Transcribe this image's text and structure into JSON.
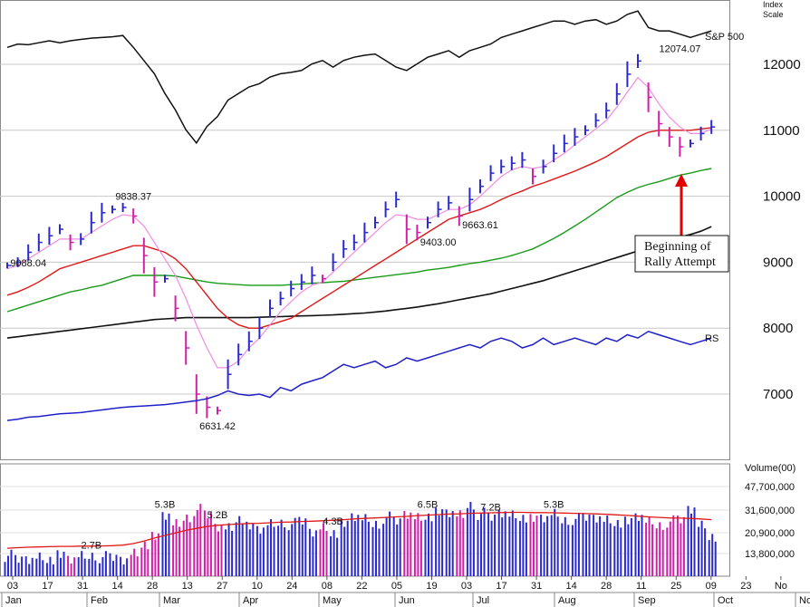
{
  "chart_data": {
    "type": "line",
    "title": "",
    "index_label": "S&P 500",
    "scale_label_1": "Index",
    "scale_label_2": "Scale",
    "rs_label": "RS",
    "volume_label": "Volume(00)",
    "y_ticks": [
      7000,
      8000,
      9000,
      10000,
      11000,
      12000
    ],
    "ylim": [
      6300,
      13000
    ],
    "volume_ticks": [
      "47,700,000",
      "31,600,000",
      "20,900,000",
      "13,800,000"
    ],
    "x_ticks": [
      "03",
      "17",
      "31",
      "14",
      "28",
      "13",
      "27",
      "10",
      "24",
      "08",
      "22",
      "05",
      "19",
      "03",
      "17",
      "31",
      "14",
      "28",
      "11",
      "25",
      "09",
      "23",
      "No"
    ],
    "months": [
      "Jan",
      "Feb",
      "Mar",
      "Apr",
      "May",
      "Jun",
      "Jul",
      "Aug",
      "Sep",
      "Oct",
      "Nov"
    ],
    "price_annotations": [
      {
        "label": "9838.37",
        "week": 12,
        "value": 9838
      },
      {
        "label": "9088.04",
        "week": 2,
        "value": 9088
      },
      {
        "label": "6631.42",
        "week": 20,
        "value": 6631
      },
      {
        "label": "9403.00",
        "week": 41,
        "value": 9403
      },
      {
        "label": "9663.61",
        "week": 45,
        "value": 9664
      },
      {
        "label": "12074.07",
        "week": 64,
        "value": 12074
      }
    ],
    "volume_annotations": [
      {
        "label": "2.7B",
        "week": 8
      },
      {
        "label": "5.3B",
        "week": 15
      },
      {
        "label": "5.2B",
        "week": 20
      },
      {
        "label": "4.3B",
        "week": 31
      },
      {
        "label": "6.5B",
        "week": 40
      },
      {
        "label": "7.2B",
        "week": 46
      },
      {
        "label": "5.3B",
        "week": 52
      }
    ],
    "callout": [
      "Beginning  of",
      "Rally  Attempt"
    ],
    "series": [
      {
        "name": "price",
        "values": [
          8950,
          9000,
          9150,
          9300,
          9400,
          9500,
          9300,
          9350,
          9600,
          9750,
          9800,
          9830,
          9700,
          9100,
          8700,
          8750,
          8300,
          7700,
          7000,
          6800,
          6750,
          7300,
          7600,
          7800,
          8000,
          8300,
          8450,
          8600,
          8700,
          8800,
          8750,
          9000,
          9200,
          9300,
          9450,
          9600,
          9800,
          9950,
          9500,
          9450,
          9600,
          9800,
          9900,
          9700,
          9950,
          10150,
          10350,
          10450,
          10500,
          10550,
          10300,
          10450,
          10650,
          10800,
          10900,
          11000,
          11150,
          11300,
          11550,
          11850,
          12050,
          11500,
          11100,
          10900,
          10750,
          10800,
          10950,
          11050
        ]
      },
      {
        "name": "ma10",
        "values": [
          8900,
          8950,
          9050,
          9150,
          9250,
          9350,
          9350,
          9350,
          9450,
          9550,
          9650,
          9720,
          9700,
          9550,
          9300,
          9050,
          8800,
          8450,
          8050,
          7700,
          7400,
          7400,
          7500,
          7700,
          7850,
          8050,
          8250,
          8400,
          8550,
          8650,
          8700,
          8850,
          9000,
          9150,
          9300,
          9450,
          9600,
          9720,
          9700,
          9650,
          9650,
          9720,
          9800,
          9800,
          9870,
          10000,
          10150,
          10300,
          10400,
          10450,
          10420,
          10450,
          10550,
          10650,
          10780,
          10900,
          11020,
          11150,
          11350,
          11580,
          11800,
          11650,
          11400,
          11200,
          11050,
          10950,
          10950,
          11020
        ]
      },
      {
        "name": "ma21",
        "values": [
          8500,
          8550,
          8620,
          8700,
          8800,
          8900,
          8950,
          9000,
          9050,
          9100,
          9150,
          9200,
          9250,
          9250,
          9200,
          9150,
          9050,
          8900,
          8700,
          8500,
          8300,
          8150,
          8050,
          8000,
          8000,
          8050,
          8100,
          8150,
          8250,
          8350,
          8450,
          8550,
          8650,
          8750,
          8850,
          8950,
          9050,
          9150,
          9250,
          9350,
          9450,
          9550,
          9650,
          9700,
          9750,
          9800,
          9870,
          9950,
          10020,
          10080,
          10150,
          10200,
          10260,
          10320,
          10380,
          10450,
          10520,
          10600,
          10700,
          10800,
          10900,
          10970,
          11000,
          11000,
          11000,
          11000,
          11020,
          11040
        ]
      },
      {
        "name": "ma50",
        "values": [
          8250,
          8300,
          8350,
          8400,
          8450,
          8500,
          8550,
          8580,
          8620,
          8650,
          8700,
          8750,
          8800,
          8800,
          8800,
          8800,
          8790,
          8760,
          8730,
          8700,
          8680,
          8670,
          8660,
          8650,
          8650,
          8650,
          8650,
          8660,
          8670,
          8680,
          8690,
          8700,
          8710,
          8730,
          8750,
          8770,
          8790,
          8810,
          8830,
          8850,
          8880,
          8900,
          8920,
          8950,
          8980,
          9000,
          9030,
          9060,
          9100,
          9150,
          9200,
          9280,
          9360,
          9450,
          9550,
          9650,
          9760,
          9870,
          9980,
          10060,
          10130,
          10180,
          10220,
          10270,
          10320,
          10350,
          10390,
          10420
        ]
      },
      {
        "name": "ma200",
        "values": [
          7850,
          7870,
          7890,
          7910,
          7930,
          7950,
          7970,
          7990,
          8010,
          8030,
          8050,
          8070,
          8090,
          8110,
          8130,
          8140,
          8150,
          8160,
          8160,
          8160,
          8160,
          8160,
          8160,
          8160,
          8165,
          8170,
          8175,
          8180,
          8185,
          8190,
          8195,
          8200,
          8210,
          8220,
          8230,
          8245,
          8260,
          8280,
          8300,
          8320,
          8345,
          8370,
          8400,
          8430,
          8460,
          8490,
          8520,
          8560,
          8600,
          8640,
          8680,
          8720,
          8770,
          8820,
          8870,
          8920,
          8970,
          9020,
          9070,
          9120,
          9170,
          9220,
          9270,
          9320,
          9380,
          9420,
          9470,
          9540
        ]
      },
      {
        "name": "rs",
        "values": [
          6600,
          6620,
          6650,
          6660,
          6680,
          6700,
          6710,
          6720,
          6740,
          6760,
          6780,
          6800,
          6810,
          6820,
          6830,
          6840,
          6860,
          6880,
          6900,
          6930,
          6980,
          7050,
          7000,
          6980,
          7000,
          6950,
          7100,
          7050,
          7150,
          7200,
          7250,
          7350,
          7450,
          7400,
          7450,
          7500,
          7400,
          7450,
          7550,
          7500,
          7550,
          7600,
          7650,
          7700,
          7750,
          7700,
          7800,
          7850,
          7800,
          7700,
          7750,
          7850,
          7750,
          7800,
          7850,
          7800,
          7750,
          7850,
          7800,
          7900,
          7850,
          7950,
          7900,
          7850,
          7800,
          7750,
          7800,
          7850
        ]
      },
      {
        "name": "index",
        "values": [
          12400,
          12450,
          12440,
          12470,
          12500,
          12470,
          12500,
          12520,
          12540,
          12550,
          12560,
          12580,
          12400,
          12200,
          12000,
          11700,
          11450,
          11150,
          10950,
          11200,
          11350,
          11600,
          11700,
          11800,
          11850,
          11950,
          12000,
          12020,
          12050,
          12150,
          12200,
          12100,
          12200,
          12250,
          12280,
          12300,
          12200,
          12100,
          12050,
          12150,
          12250,
          12300,
          12350,
          12250,
          12350,
          12400,
          12450,
          12550,
          12600,
          12650,
          12700,
          12750,
          12800,
          12800,
          12750,
          12800,
          12820,
          12750,
          12800,
          12900,
          12950,
          12700,
          12650,
          12650,
          12600,
          12550,
          12600,
          12650
        ]
      },
      {
        "name": "volume",
        "values": [
          18000,
          16500,
          17200,
          17500,
          17000,
          17800,
          16800,
          17500,
          18000,
          17500,
          17200,
          17000,
          19000,
          23000,
          25000,
          34000,
          30000,
          33000,
          36000,
          34000,
          30000,
          29000,
          33000,
          29000,
          28500,
          30000,
          31000,
          30500,
          31500,
          28000,
          29000,
          27500,
          30000,
          33500,
          32000,
          30500,
          33000,
          31500,
          35000,
          33000,
          34000,
          34500,
          35000,
          33500,
          38000,
          34500,
          33000,
          35500,
          34000,
          33500,
          32000,
          33000,
          34000,
          32000,
          32500,
          33000,
          33500,
          32000,
          31500,
          31000,
          33500,
          31000,
          30000,
          31500,
          32000,
          37000,
          30000,
          26000
        ]
      },
      {
        "name": "volume_ma",
        "values": [
          21000,
          21200,
          21400,
          21500,
          21600,
          21700,
          21700,
          21800,
          21800,
          21900,
          22000,
          22200,
          22800,
          23800,
          25000,
          26000,
          27000,
          28000,
          28800,
          29500,
          30000,
          30300,
          30500,
          30700,
          30800,
          31000,
          31200,
          31300,
          31500,
          31600,
          31800,
          32000,
          32200,
          32500,
          32700,
          32900,
          33100,
          33300,
          33500,
          33800,
          34000,
          34200,
          34400,
          34500,
          34700,
          34800,
          34900,
          35000,
          35100,
          35100,
          35000,
          35000,
          34900,
          34800,
          34700,
          34600,
          34500,
          34300,
          34100,
          33900,
          33600,
          33300,
          33100,
          32900,
          32800,
          32700,
          32500,
          32200
        ]
      }
    ]
  }
}
